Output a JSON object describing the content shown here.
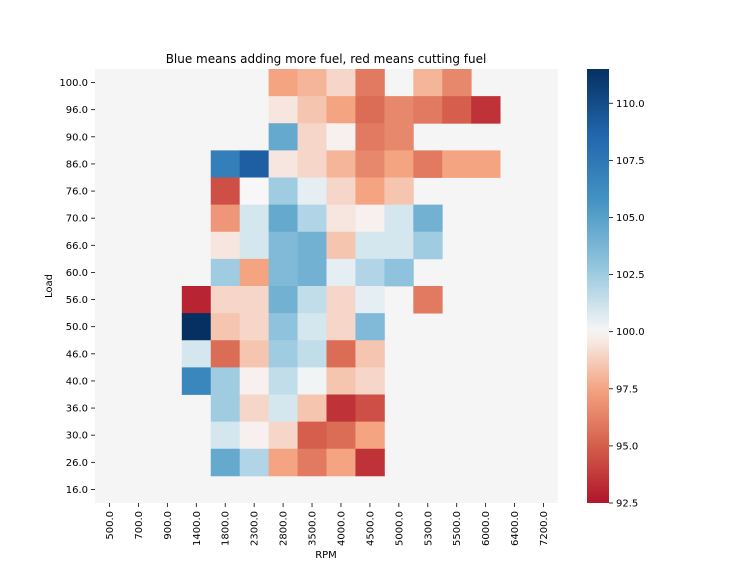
{
  "chart_data": {
    "type": "heatmap",
    "title": "Blue means adding more fuel, red means cutting fuel",
    "xlabel": "RPM",
    "ylabel": "Load",
    "x": [
      "500.0",
      "700.0",
      "900.0",
      "1400.0",
      "1800.0",
      "2300.0",
      "2800.0",
      "3500.0",
      "4000.0",
      "4500.0",
      "5000.0",
      "5300.0",
      "5500.0",
      "6000.0",
      "6400.0",
      "7200.0"
    ],
    "y": [
      "100.0",
      "96.0",
      "90.0",
      "86.0",
      "76.0",
      "70.0",
      "66.0",
      "60.0",
      "56.0",
      "50.0",
      "46.0",
      "40.0",
      "36.0",
      "30.0",
      "26.0",
      "16.0"
    ],
    "values": [
      [
        null,
        null,
        null,
        null,
        null,
        null,
        97.5,
        98.0,
        99.0,
        96.0,
        null,
        98.0,
        96.5,
        null,
        null,
        null
      ],
      [
        null,
        null,
        null,
        null,
        null,
        null,
        99.5,
        98.5,
        97.5,
        95.5,
        96.5,
        96.0,
        95.0,
        93.5,
        null,
        null
      ],
      [
        null,
        null,
        null,
        null,
        null,
        null,
        104.5,
        99.0,
        99.8,
        96.0,
        96.5,
        null,
        null,
        null,
        null,
        null
      ],
      [
        null,
        null,
        null,
        null,
        107.0,
        109.0,
        99.5,
        99.0,
        98.0,
        96.5,
        97.5,
        96.0,
        97.5,
        97.5,
        null,
        null
      ],
      [
        null,
        null,
        null,
        null,
        94.5,
        100.0,
        102.5,
        100.5,
        99.0,
        97.5,
        98.5,
        null,
        null,
        null,
        null,
        null
      ],
      [
        null,
        null,
        null,
        null,
        97.0,
        101.0,
        104.5,
        102.0,
        99.5,
        99.8,
        101.0,
        104.0,
        null,
        null,
        null,
        null
      ],
      [
        null,
        null,
        null,
        null,
        99.5,
        101.0,
        103.5,
        104.0,
        98.5,
        101.0,
        101.0,
        102.5,
        null,
        null,
        null,
        null
      ],
      [
        null,
        null,
        null,
        null,
        102.5,
        97.5,
        103.5,
        104.0,
        100.5,
        102.0,
        103.0,
        null,
        null,
        null,
        null,
        null
      ],
      [
        null,
        null,
        null,
        93.0,
        99.0,
        99.0,
        104.0,
        101.5,
        99.0,
        100.5,
        null,
        96.0,
        null,
        null,
        null,
        null
      ],
      [
        null,
        null,
        null,
        111.5,
        98.5,
        99.0,
        103.0,
        101.0,
        99.0,
        103.5,
        null,
        null,
        null,
        null,
        null,
        null
      ],
      [
        null,
        null,
        null,
        101.0,
        95.5,
        98.5,
        102.5,
        101.5,
        95.5,
        98.5,
        null,
        null,
        null,
        null,
        null,
        null
      ],
      [
        null,
        null,
        null,
        106.5,
        102.5,
        99.8,
        101.5,
        100.2,
        98.5,
        99.0,
        null,
        null,
        null,
        null,
        null,
        null
      ],
      [
        null,
        null,
        null,
        null,
        102.5,
        99.0,
        101.0,
        98.5,
        93.5,
        94.5,
        null,
        null,
        null,
        null,
        null,
        null
      ],
      [
        null,
        null,
        null,
        null,
        101.0,
        99.8,
        99.0,
        95.0,
        95.5,
        97.5,
        null,
        null,
        null,
        null,
        null,
        null
      ],
      [
        null,
        null,
        null,
        null,
        104.5,
        102.0,
        97.5,
        96.0,
        97.5,
        93.5,
        null,
        null,
        null,
        null,
        null,
        null
      ],
      [
        null,
        null,
        null,
        null,
        null,
        null,
        null,
        null,
        null,
        null,
        null,
        null,
        null,
        null,
        null,
        null
      ]
    ],
    "colorbar": {
      "min": 92.5,
      "max": 111.5,
      "ticks": [
        "92.5",
        "95.0",
        "97.5",
        "100.0",
        "102.5",
        "105.0",
        "107.5",
        "110.0"
      ],
      "colormap": "RdBu"
    },
    "empty_cell_color": "#f5f5f5"
  }
}
